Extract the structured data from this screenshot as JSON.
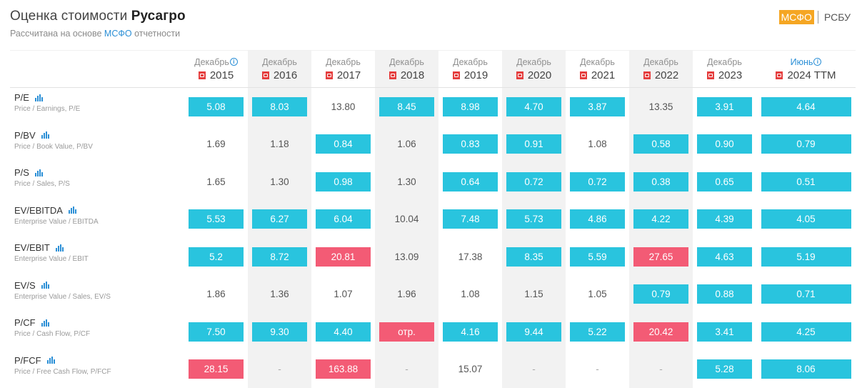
{
  "header": {
    "title_prefix": "Оценка стоимости",
    "company": "Русагро",
    "subtitle_prefix": "Рассчитана на основе",
    "subtitle_standard": "МСФО",
    "subtitle_suffix": "отчетности"
  },
  "standards": [
    {
      "label": "МСФО",
      "active": true
    },
    {
      "label": "РСБУ",
      "active": false
    }
  ],
  "periods": [
    {
      "month": "Декабрь",
      "year": "2015",
      "info": true
    },
    {
      "month": "Декабрь",
      "year": "2016",
      "info": false
    },
    {
      "month": "Декабрь",
      "year": "2017",
      "info": false
    },
    {
      "month": "Декабрь",
      "year": "2018",
      "info": false
    },
    {
      "month": "Декабрь",
      "year": "2019",
      "info": false
    },
    {
      "month": "Декабрь",
      "year": "2020",
      "info": false
    },
    {
      "month": "Декабрь",
      "year": "2021",
      "info": false
    },
    {
      "month": "Декабрь",
      "year": "2022",
      "info": false
    },
    {
      "month": "Декабрь",
      "year": "2023",
      "info": false
    },
    {
      "month": "Июнь",
      "year": "2024 TTM",
      "info": true
    }
  ],
  "colors": {
    "good": "#29c4de",
    "bad": "#f35b75",
    "accent": "#2b8fd6",
    "active_standard": "#f5a623"
  },
  "metrics": [
    {
      "name": "P/E",
      "desc": "Price / Earnings, P/E",
      "values": [
        [
          "5.08",
          "good"
        ],
        [
          "8.03",
          "good"
        ],
        [
          "13.80",
          "plain"
        ],
        [
          "8.45",
          "good"
        ],
        [
          "8.98",
          "good"
        ],
        [
          "4.70",
          "good"
        ],
        [
          "3.87",
          "good"
        ],
        [
          "13.35",
          "plain"
        ],
        [
          "3.91",
          "good"
        ],
        [
          "4.64",
          "good"
        ]
      ]
    },
    {
      "name": "P/BV",
      "desc": "Price / Book Value, P/BV",
      "values": [
        [
          "1.69",
          "plain"
        ],
        [
          "1.18",
          "plain"
        ],
        [
          "0.84",
          "good"
        ],
        [
          "1.06",
          "plain"
        ],
        [
          "0.83",
          "good"
        ],
        [
          "0.91",
          "good"
        ],
        [
          "1.08",
          "plain"
        ],
        [
          "0.58",
          "good"
        ],
        [
          "0.90",
          "good"
        ],
        [
          "0.79",
          "good"
        ]
      ]
    },
    {
      "name": "P/S",
      "desc": "Price / Sales, P/S",
      "values": [
        [
          "1.65",
          "plain"
        ],
        [
          "1.30",
          "plain"
        ],
        [
          "0.98",
          "good"
        ],
        [
          "1.30",
          "plain"
        ],
        [
          "0.64",
          "good"
        ],
        [
          "0.72",
          "good"
        ],
        [
          "0.72",
          "good"
        ],
        [
          "0.38",
          "good"
        ],
        [
          "0.65",
          "good"
        ],
        [
          "0.51",
          "good"
        ]
      ]
    },
    {
      "name": "EV/EBITDA",
      "desc": "Enterprise Value / EBITDA",
      "values": [
        [
          "5.53",
          "good"
        ],
        [
          "6.27",
          "good"
        ],
        [
          "6.04",
          "good"
        ],
        [
          "10.04",
          "plain"
        ],
        [
          "7.48",
          "good"
        ],
        [
          "5.73",
          "good"
        ],
        [
          "4.86",
          "good"
        ],
        [
          "4.22",
          "good"
        ],
        [
          "4.39",
          "good"
        ],
        [
          "4.05",
          "good"
        ]
      ]
    },
    {
      "name": "EV/EBIT",
      "desc": "Enterprise Value / EBIT",
      "values": [
        [
          "5.2",
          "good"
        ],
        [
          "8.72",
          "good"
        ],
        [
          "20.81",
          "bad"
        ],
        [
          "13.09",
          "plain"
        ],
        [
          "17.38",
          "plain"
        ],
        [
          "8.35",
          "good"
        ],
        [
          "5.59",
          "good"
        ],
        [
          "27.65",
          "bad"
        ],
        [
          "4.63",
          "good"
        ],
        [
          "5.19",
          "good"
        ]
      ]
    },
    {
      "name": "EV/S",
      "desc": "Enterprise Value / Sales, EV/S",
      "values": [
        [
          "1.86",
          "plain"
        ],
        [
          "1.36",
          "plain"
        ],
        [
          "1.07",
          "plain"
        ],
        [
          "1.96",
          "plain"
        ],
        [
          "1.08",
          "plain"
        ],
        [
          "1.15",
          "plain"
        ],
        [
          "1.05",
          "plain"
        ],
        [
          "0.79",
          "good"
        ],
        [
          "0.88",
          "good"
        ],
        [
          "0.71",
          "good"
        ]
      ]
    },
    {
      "name": "P/CF",
      "desc": "Price / Cash Flow, P/CF",
      "values": [
        [
          "7.50",
          "good"
        ],
        [
          "9.30",
          "good"
        ],
        [
          "4.40",
          "good"
        ],
        [
          "отр.",
          "bad"
        ],
        [
          "4.16",
          "good"
        ],
        [
          "9.44",
          "good"
        ],
        [
          "5.22",
          "good"
        ],
        [
          "20.42",
          "bad"
        ],
        [
          "3.41",
          "good"
        ],
        [
          "4.25",
          "good"
        ]
      ]
    },
    {
      "name": "P/FCF",
      "desc": "Price / Free Cash Flow, P/FCF",
      "values": [
        [
          "28.15",
          "bad"
        ],
        [
          "-",
          "dash"
        ],
        [
          "163.88",
          "bad"
        ],
        [
          "-",
          "dash"
        ],
        [
          "15.07",
          "plain"
        ],
        [
          "-",
          "dash"
        ],
        [
          "-",
          "dash"
        ],
        [
          "-",
          "dash"
        ],
        [
          "5.28",
          "good"
        ],
        [
          "8.06",
          "good"
        ]
      ]
    }
  ]
}
